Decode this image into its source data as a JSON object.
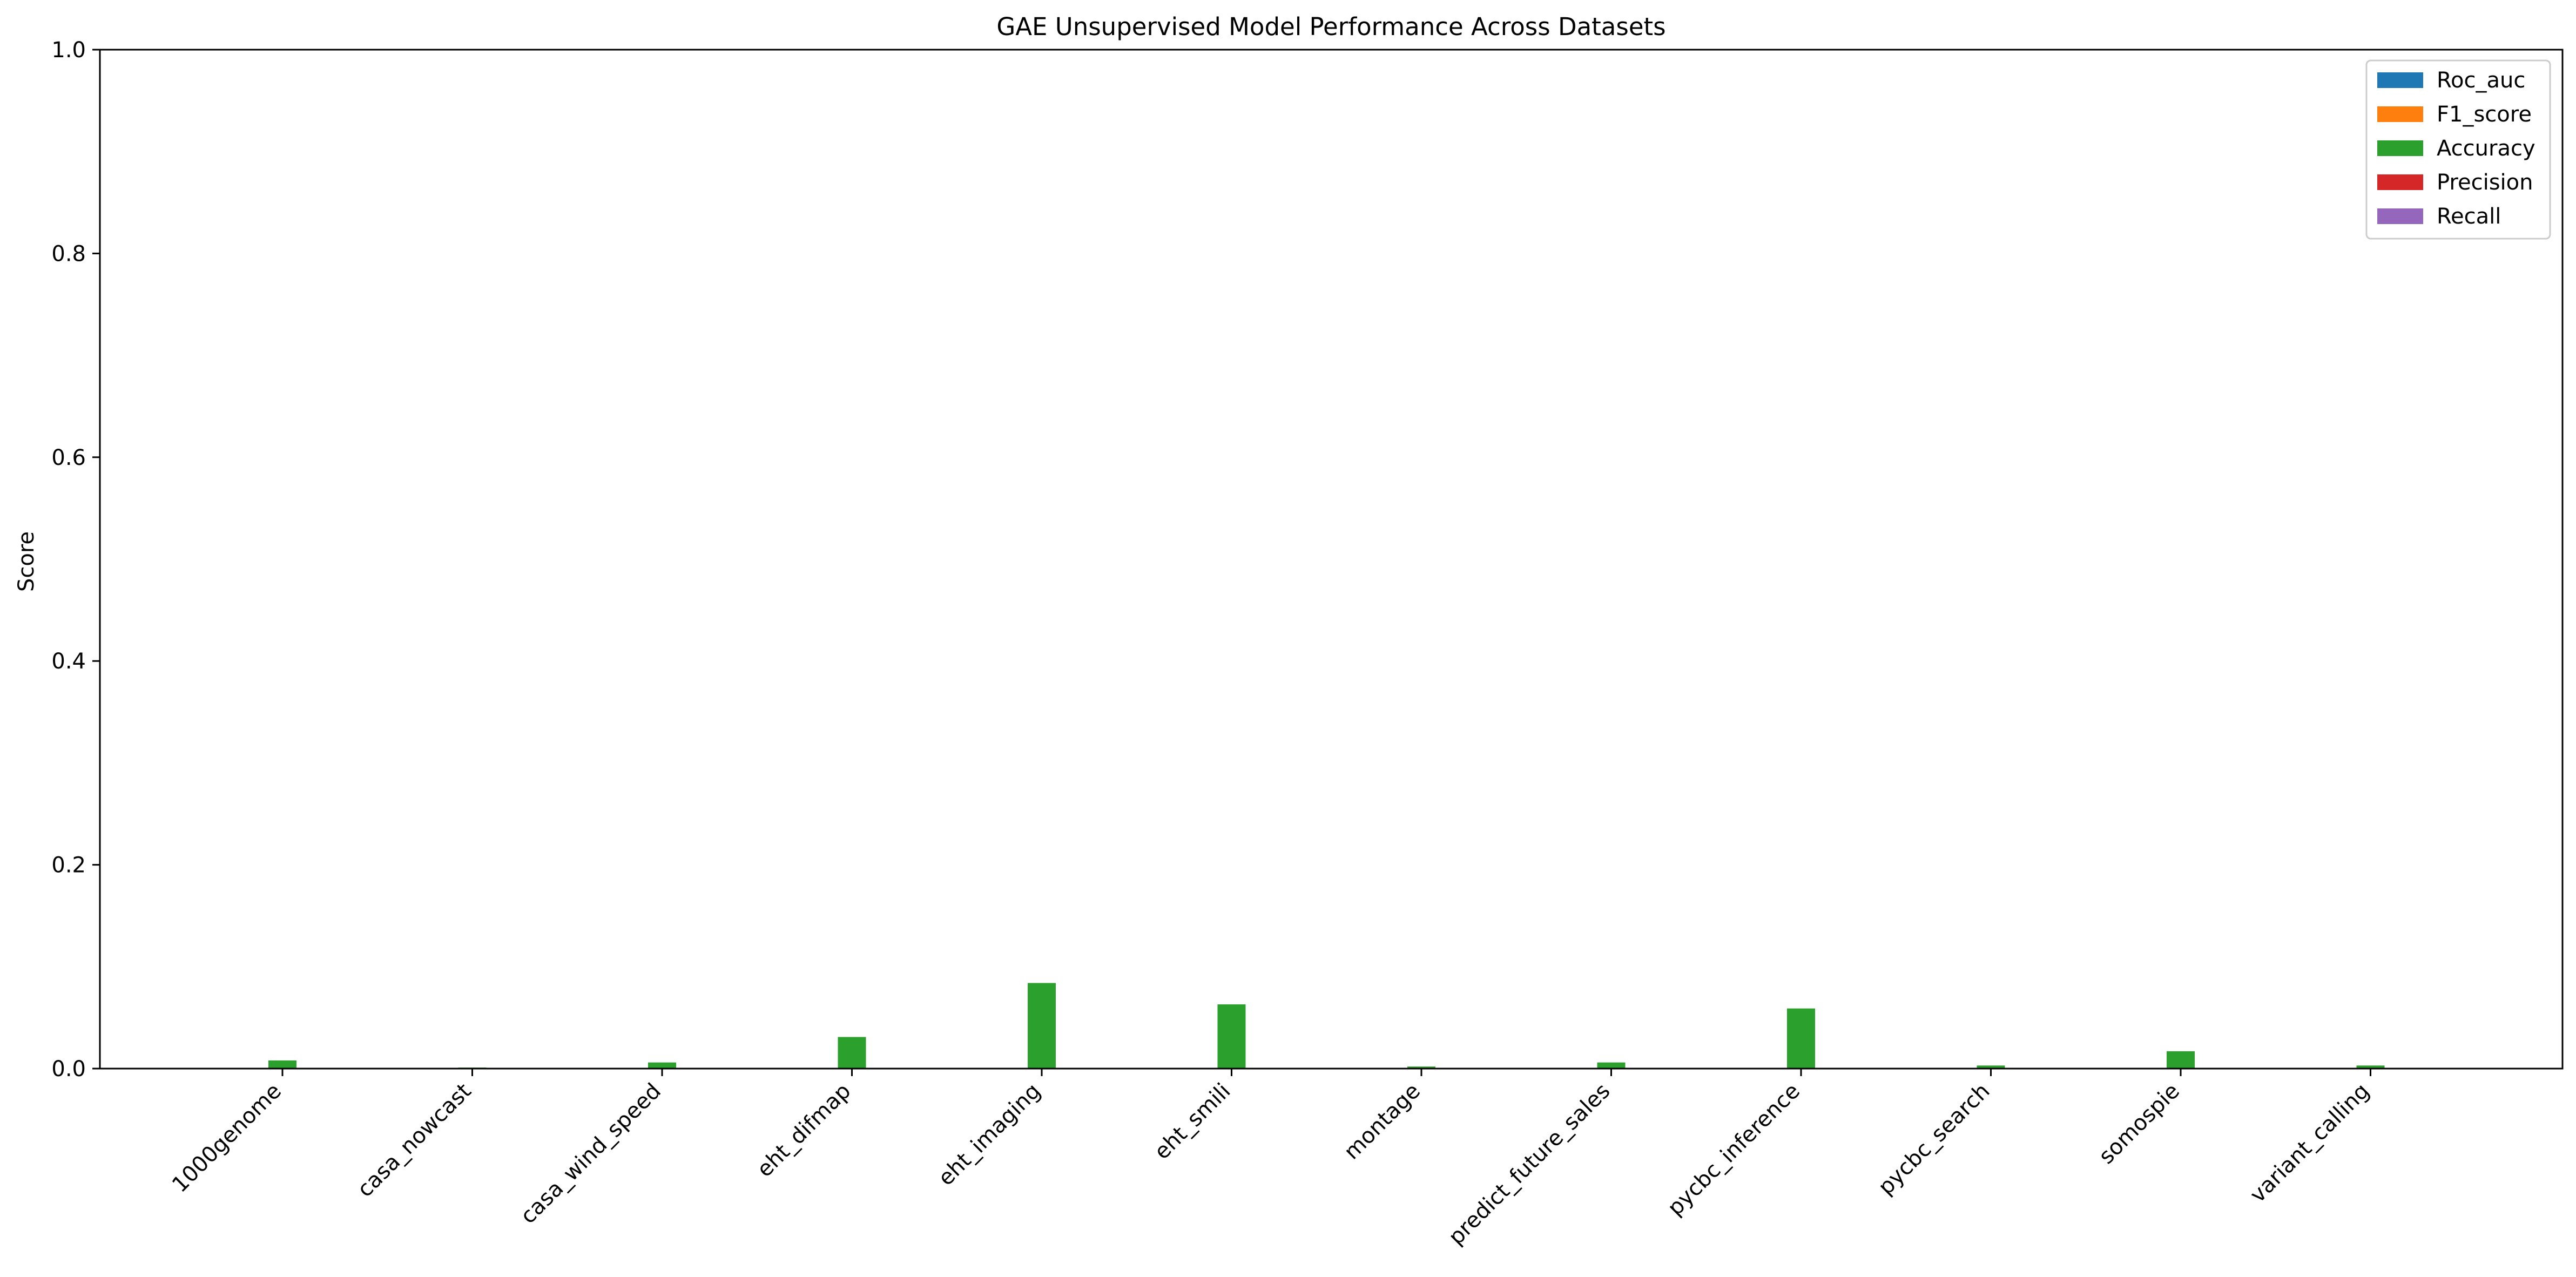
{
  "chart_data": {
    "type": "bar",
    "title": "GAE Unsupervised Model Performance Across Datasets",
    "xlabel": "",
    "ylabel": "Score",
    "ylim": [
      0,
      1.0
    ],
    "yticks": [
      "0.0",
      "0.2",
      "0.4",
      "0.6",
      "0.8",
      "1.0"
    ],
    "categories": [
      "1000genome",
      "casa_nowcast",
      "casa_wind_speed",
      "eht_difmap",
      "eht_imaging",
      "eht_smili",
      "montage",
      "predict_future_sales",
      "pycbc_inference",
      "pycbc_search",
      "somospie",
      "variant_calling"
    ],
    "series": [
      {
        "name": "Roc_auc",
        "color": "#1f77b4",
        "values": [
          0,
          0,
          0,
          0,
          0,
          0,
          0,
          0,
          0,
          0,
          0,
          0
        ]
      },
      {
        "name": "F1_score",
        "color": "#ff7f0e",
        "values": [
          0,
          0,
          0,
          0,
          0,
          0,
          0,
          0,
          0,
          0,
          0,
          0
        ]
      },
      {
        "name": "Accuracy",
        "color": "#2ca02c",
        "values": [
          0.008,
          0.001,
          0.006,
          0.031,
          0.084,
          0.063,
          0.002,
          0.006,
          0.059,
          0.003,
          0.017,
          0.003
        ]
      },
      {
        "name": "Precision",
        "color": "#d62728",
        "values": [
          0,
          0,
          0,
          0,
          0,
          0,
          0,
          0,
          0,
          0,
          0,
          0
        ]
      },
      {
        "name": "Recall",
        "color": "#9467bd",
        "values": [
          0,
          0,
          0,
          0,
          0,
          0,
          0,
          0,
          0,
          0,
          0,
          0
        ]
      }
    ],
    "grid": false,
    "legend_position": "top-right"
  }
}
